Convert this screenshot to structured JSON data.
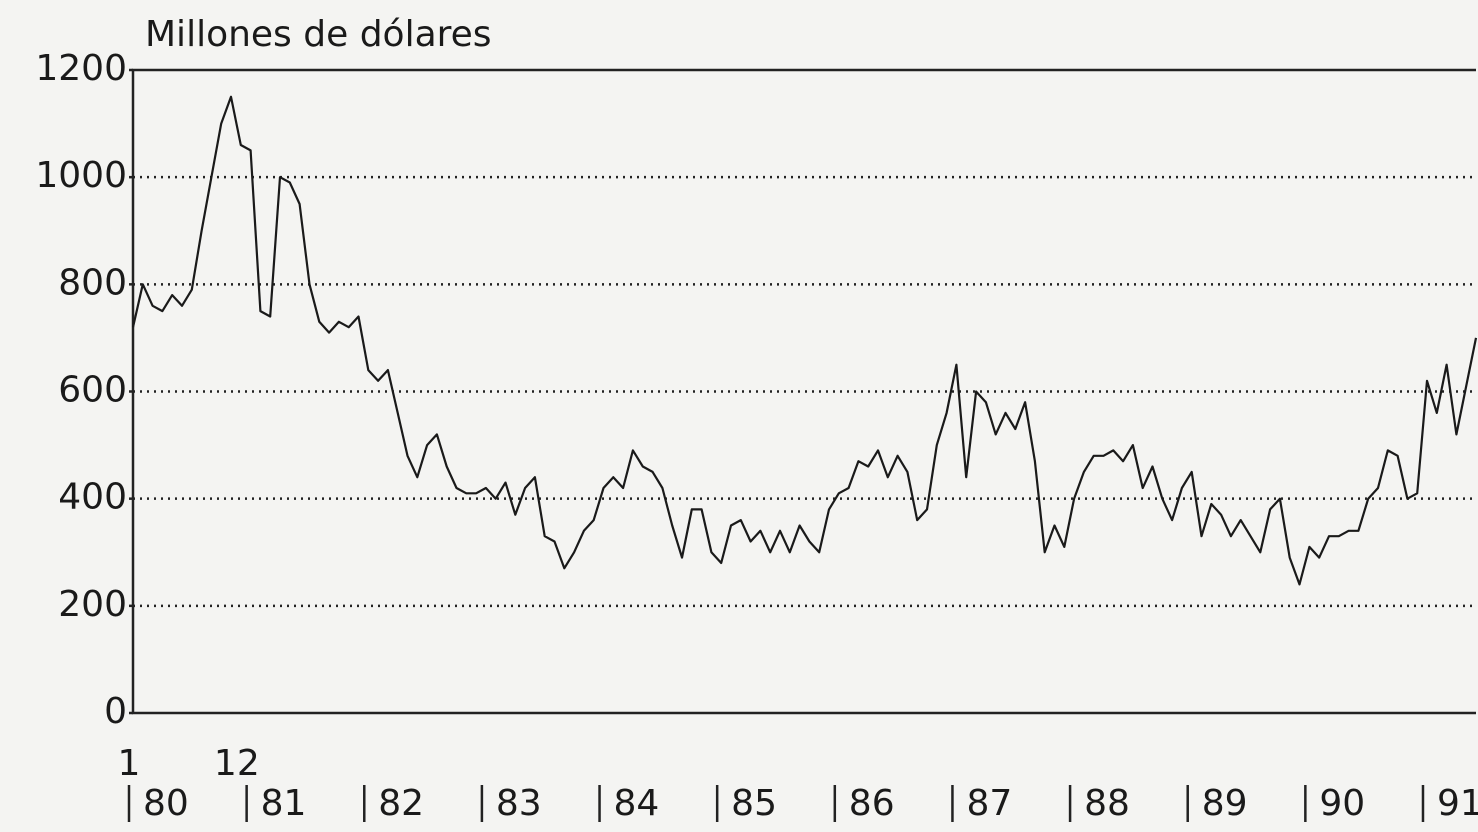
{
  "chart_data": {
    "type": "line",
    "title": "Millones de dólares",
    "month_labels": [
      "1",
      "12"
    ],
    "year_labels": [
      "80",
      "81",
      "82",
      "83",
      "84",
      "85",
      "86",
      "87",
      "88",
      "89",
      "90",
      "91"
    ],
    "values": [
      720,
      800,
      760,
      750,
      780,
      760,
      790,
      900,
      1000,
      1100,
      1150,
      1060,
      1050,
      750,
      740,
      1000,
      990,
      950,
      800,
      730,
      710,
      730,
      720,
      740,
      640,
      620,
      640,
      560,
      480,
      440,
      500,
      520,
      460,
      420,
      410,
      410,
      420,
      400,
      430,
      370,
      420,
      440,
      330,
      320,
      270,
      300,
      340,
      360,
      420,
      440,
      420,
      490,
      460,
      450,
      420,
      350,
      290,
      380,
      380,
      300,
      280,
      350,
      360,
      320,
      340,
      300,
      340,
      300,
      350,
      320,
      300,
      380,
      410,
      420,
      470,
      460,
      490,
      440,
      480,
      450,
      360,
      380,
      500,
      560,
      650,
      440,
      600,
      580,
      520,
      560,
      530,
      580,
      470,
      300,
      350,
      310,
      400,
      450,
      480,
      480,
      490,
      470,
      500,
      420,
      460,
      400,
      360,
      420,
      450,
      330,
      390,
      370,
      330,
      360,
      330,
      300,
      380,
      400,
      290,
      240,
      310,
      290,
      330,
      330,
      340,
      340,
      400,
      420,
      490,
      480,
      400,
      410,
      620,
      560,
      650,
      520,
      610,
      700
    ],
    "color": "#1a1a1a",
    "ylim": [
      0,
      1200
    ],
    "yticks": [
      0,
      200,
      400,
      600,
      800,
      1000,
      1200
    ],
    "grid": true
  }
}
